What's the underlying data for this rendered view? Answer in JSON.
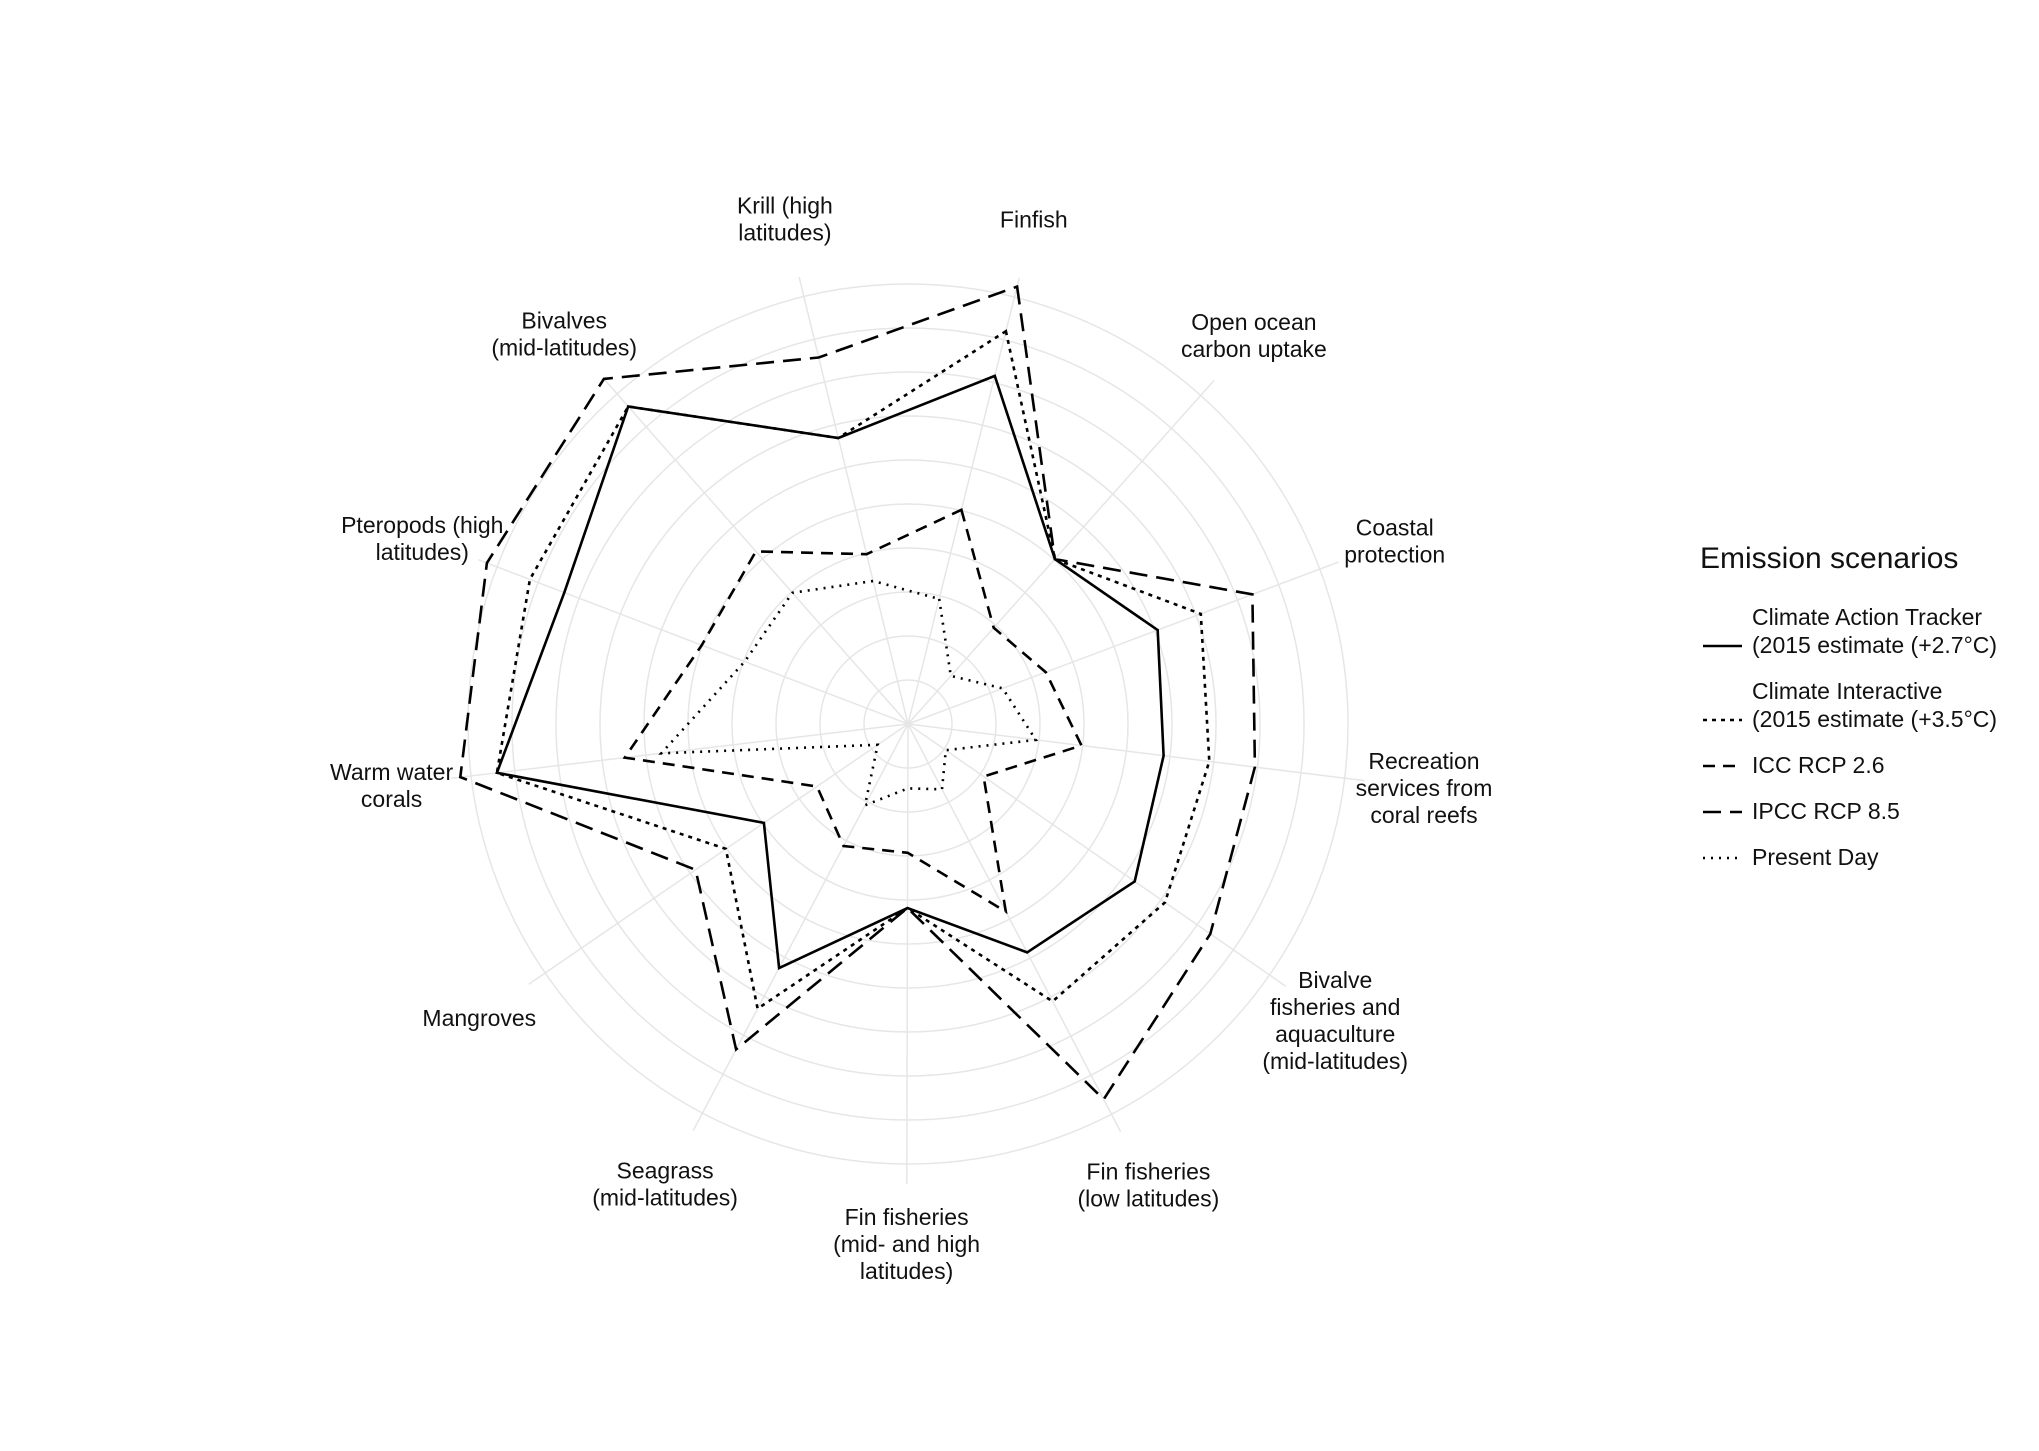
{
  "chart_data": {
    "type": "radar",
    "title": "",
    "rlim": [
      0,
      5
    ],
    "grid": true,
    "categories": [
      [
        "Finfish"
      ],
      [
        "Open ocean",
        "carbon uptake"
      ],
      [
        "Coastal",
        "protection"
      ],
      [
        "Recreation",
        "services from",
        "coral reefs"
      ],
      [
        "Bivalve",
        "fisheries and",
        "aquaculture",
        "(mid-latitudes)"
      ],
      [
        "Fin fisheries",
        "(low latitudes)"
      ],
      [
        "Fin fisheries",
        "(mid- and high",
        "latitudes)"
      ],
      [
        "Seagrass",
        "(mid-latitudes)"
      ],
      [
        "Mangroves"
      ],
      [
        "Warm water",
        "corals"
      ],
      [
        "Pteropods (high",
        "latitudes)"
      ],
      [
        "Bivalves",
        "(mid-latitudes)"
      ],
      [
        "Krill (high",
        "latitudes)"
      ]
    ],
    "series": [
      {
        "name": [
          "Climate Action Tracker",
          "(2015 estimate (+2.7°C)"
        ],
        "dash": "solid",
        "values": [
          3.9,
          2.4,
          2.9,
          2.8,
          3.0,
          2.8,
          2.0,
          3.0,
          1.9,
          4.5,
          4.0,
          4.6,
          3.2
        ]
      },
      {
        "name": [
          "Climate Interactive",
          "(2015 estimate (+3.5°C)"
        ],
        "dash": "shortdash",
        "values": [
          4.4,
          2.4,
          3.4,
          3.3,
          3.4,
          3.4,
          2.0,
          3.5,
          2.4,
          4.5,
          4.4,
          4.6,
          3.2
        ]
      },
      {
        "name": [
          "ICC RCP 2.6"
        ],
        "dash": "dash",
        "values": [
          2.4,
          1.4,
          1.6,
          1.9,
          1.0,
          2.3,
          1.4,
          1.5,
          1.2,
          3.1,
          2.4,
          2.5,
          1.9
        ]
      },
      {
        "name": [
          "IPCC RCP 8.5"
        ],
        "dash": "longdash",
        "values": [
          4.9,
          2.4,
          4.0,
          3.8,
          4.0,
          4.6,
          2.0,
          4.0,
          2.8,
          4.9,
          4.9,
          5.0,
          4.1
        ]
      },
      {
        "name": [
          "Present Day"
        ],
        "dash": "dot",
        "values": [
          1.4,
          0.7,
          1.1,
          1.4,
          0.5,
          0.8,
          0.7,
          1.0,
          0.4,
          2.7,
          1.9,
          1.9,
          1.6
        ]
      }
    ],
    "legend": {
      "title": "Emission scenarios",
      "position": "right"
    }
  }
}
